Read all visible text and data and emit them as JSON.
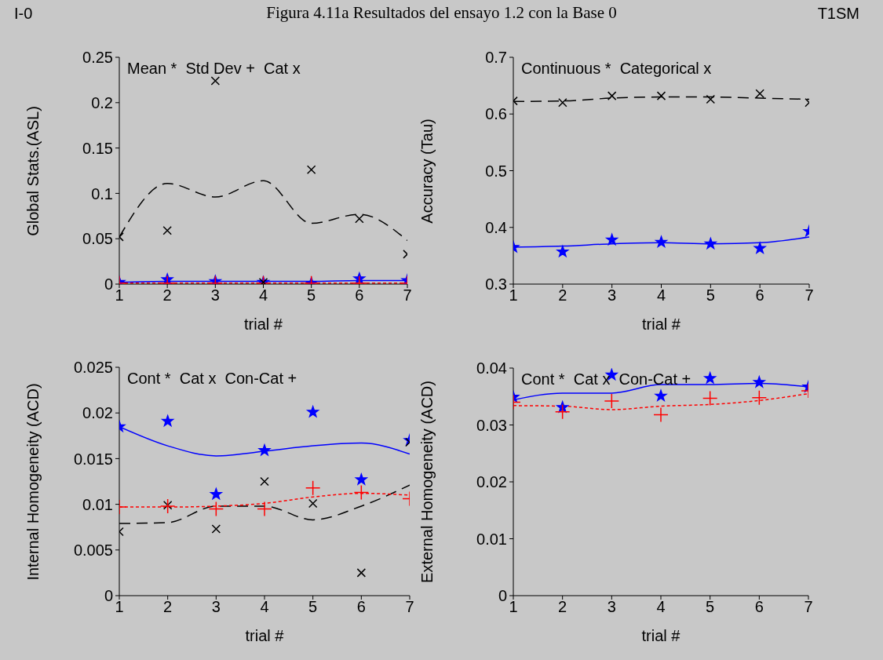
{
  "chart_data": [
    {
      "type": "line",
      "title": "Figura 4.11a Resultados del ensayo 1.2 con la Base 0",
      "xlabel": "trial #",
      "ylabel": "Global Stats.(ASL)",
      "annotations": [
        "Mean *  Std Dev +  Cat x",
        "I-0",
        "T1SM"
      ],
      "x": [
        1,
        2,
        3,
        4,
        5,
        6,
        7
      ],
      "xlim": [
        1,
        7
      ],
      "xticks": [
        1,
        2,
        3,
        4,
        5,
        6,
        7
      ],
      "ylim": [
        0,
        0.25
      ],
      "yticks": [
        0,
        0.05,
        0.1,
        0.15,
        0.2,
        0.25
      ],
      "legend": false,
      "series": [
        {
          "type": "scatter",
          "marker": "star",
          "color": "#0000ff",
          "values": [
            0.002,
            0.005,
            0.003,
            0.002,
            0.001,
            0.006,
            0.004
          ]
        },
        {
          "type": "line",
          "marker": "none",
          "line_style": "solid",
          "color": "#0000ff",
          "values": [
            0.002,
            0.003,
            0.003,
            0.003,
            0.003,
            0.004,
            0.004
          ]
        },
        {
          "type": "scatter",
          "marker": "plus",
          "color": "#ff0000",
          "values": [
            0.001,
            0.001,
            0.001,
            0.001,
            0.001,
            0.001,
            0.001
          ]
        },
        {
          "type": "line",
          "marker": "none",
          "line_style": "dotted",
          "color": "#ff0000",
          "values": [
            0.001,
            0.001,
            0.001,
            0.001,
            0.001,
            0.001,
            0.001
          ]
        },
        {
          "type": "scatter",
          "marker": "cross",
          "color": "#000000",
          "values": [
            0.052,
            0.059,
            0.224,
            0.002,
            0.126,
            0.072,
            0.033
          ]
        },
        {
          "type": "line",
          "marker": "none",
          "line_style": "dashed",
          "color": "#000000",
          "values": [
            0.052,
            0.111,
            0.096,
            0.114,
            0.067,
            0.077,
            0.048
          ]
        }
      ]
    },
    {
      "type": "line",
      "xlabel": "trial #",
      "ylabel": "Accuracy (Tau)",
      "annotations": [
        "Continuous *  Categorical x"
      ],
      "x": [
        1,
        2,
        3,
        4,
        5,
        6,
        7
      ],
      "xlim": [
        1,
        7
      ],
      "xticks": [
        1,
        2,
        3,
        4,
        5,
        6,
        7
      ],
      "ylim": [
        0.3,
        0.7
      ],
      "yticks": [
        0.3,
        0.4,
        0.5,
        0.6,
        0.7
      ],
      "legend": false,
      "series": [
        {
          "type": "scatter",
          "marker": "star",
          "color": "#0000ff",
          "values": [
            0.365,
            0.357,
            0.378,
            0.374,
            0.371,
            0.363,
            0.393
          ]
        },
        {
          "type": "line",
          "marker": "none",
          "line_style": "solid",
          "color": "#0000ff",
          "values": [
            0.365,
            0.367,
            0.371,
            0.373,
            0.371,
            0.373,
            0.383
          ]
        },
        {
          "type": "scatter",
          "marker": "cross",
          "color": "#000000",
          "values": [
            0.623,
            0.62,
            0.632,
            0.632,
            0.626,
            0.636,
            0.62
          ]
        },
        {
          "type": "line",
          "marker": "none",
          "line_style": "dashed",
          "color": "#000000",
          "values": [
            0.622,
            0.623,
            0.628,
            0.63,
            0.63,
            0.628,
            0.626
          ]
        }
      ]
    },
    {
      "type": "line",
      "xlabel": "trial #",
      "ylabel": "Internal Homogeneity (ACD)",
      "annotations": [
        "Cont *  Cat x  Con-Cat +"
      ],
      "x": [
        1,
        2,
        3,
        4,
        5,
        6,
        7
      ],
      "xlim": [
        1,
        7
      ],
      "xticks": [
        1,
        2,
        3,
        4,
        5,
        6,
        7
      ],
      "ylim": [
        0,
        0.025
      ],
      "yticks": [
        0,
        0.005,
        0.01,
        0.015,
        0.02,
        0.025
      ],
      "legend": false,
      "series": [
        {
          "type": "scatter",
          "marker": "star",
          "color": "#0000ff",
          "values": [
            0.0185,
            0.0191,
            0.0111,
            0.0159,
            0.0201,
            0.0127,
            0.017
          ]
        },
        {
          "type": "line",
          "marker": "none",
          "line_style": "solid",
          "color": "#0000ff",
          "values": [
            0.0185,
            0.0164,
            0.0153,
            0.0158,
            0.0164,
            0.0167,
            0.0155
          ]
        },
        {
          "type": "scatter",
          "marker": "cross",
          "color": "#000000",
          "values": [
            0.007,
            0.0099,
            0.0073,
            0.0125,
            0.0101,
            0.0025,
            0.0168
          ]
        },
        {
          "type": "line",
          "marker": "none",
          "line_style": "dashed",
          "color": "#000000",
          "values": [
            0.0079,
            0.008,
            0.0098,
            0.0098,
            0.0083,
            0.0098,
            0.0121
          ]
        },
        {
          "type": "scatter",
          "marker": "plus",
          "color": "#ff0000",
          "values": [
            0.0097,
            0.0098,
            0.0095,
            0.0095,
            0.0118,
            0.0113,
            0.0106
          ]
        },
        {
          "type": "line",
          "marker": "none",
          "line_style": "dotted",
          "color": "#ff0000",
          "values": [
            0.0097,
            0.0097,
            0.0098,
            0.0101,
            0.0108,
            0.0112,
            0.011
          ]
        }
      ]
    },
    {
      "type": "line",
      "xlabel": "trial #",
      "ylabel": "External Homogeneity (ACD)",
      "annotations": [
        "Cont *  Cat x  Con-Cat +"
      ],
      "x": [
        1,
        2,
        3,
        4,
        5,
        6,
        7
      ],
      "xlim": [
        1,
        7
      ],
      "xticks": [
        1,
        2,
        3,
        4,
        5,
        6,
        7
      ],
      "ylim": [
        0,
        0.04
      ],
      "yticks": [
        0,
        0.01,
        0.02,
        0.03,
        0.04
      ],
      "legend": false,
      "series": [
        {
          "type": "scatter",
          "marker": "star",
          "color": "#0000ff",
          "values": [
            0.0349,
            0.0331,
            0.0388,
            0.0351,
            0.0382,
            0.0375,
            0.0367
          ]
        },
        {
          "type": "line",
          "marker": "none",
          "line_style": "solid",
          "color": "#0000ff",
          "values": [
            0.0344,
            0.0356,
            0.0356,
            0.0371,
            0.0371,
            0.0373,
            0.0367
          ]
        },
        {
          "type": "scatter",
          "marker": "plus",
          "color": "#ff0000",
          "values": [
            0.034,
            0.0323,
            0.0342,
            0.0318,
            0.0347,
            0.0348,
            0.036
          ]
        },
        {
          "type": "line",
          "marker": "none",
          "line_style": "dotted",
          "color": "#ff0000",
          "values": [
            0.0334,
            0.0333,
            0.0327,
            0.0333,
            0.0336,
            0.0343,
            0.0355
          ]
        }
      ]
    }
  ]
}
